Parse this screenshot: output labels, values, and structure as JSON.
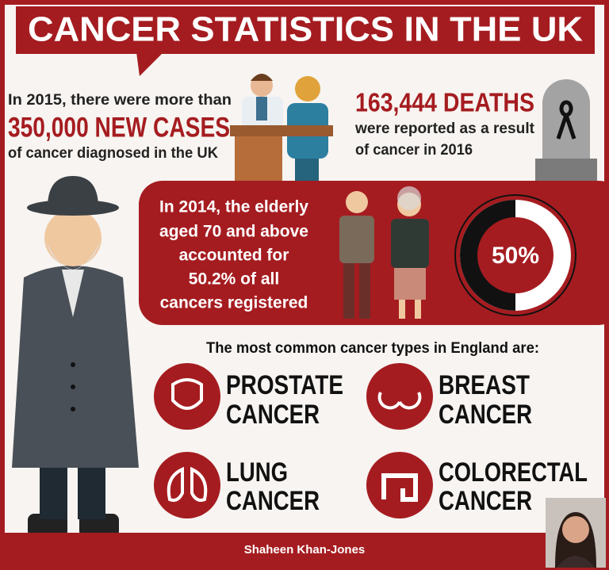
{
  "header": {
    "title": "CANCER STATISTICS IN THE UK"
  },
  "new_cases": {
    "intro": "In 2015, there were more than",
    "highlight": "350,000 NEW CASES",
    "outro": "of cancer diagnosed in the UK"
  },
  "deaths": {
    "highlight": "163,444 DEATHS",
    "lines": [
      "were reported as a result",
      "of cancer in 2016"
    ]
  },
  "elderly": {
    "lines": [
      "In 2014, the elderly",
      "aged 70 and above",
      "accounted for",
      "50.2% of all",
      "cancers registered"
    ],
    "donut_label": "50%"
  },
  "common": {
    "heading": "The most common cancer types in England are:",
    "types": [
      {
        "lines": [
          "PROSTATE",
          "CANCER"
        ]
      },
      {
        "lines": [
          "BREAST",
          "CANCER"
        ]
      },
      {
        "lines": [
          "LUNG",
          "CANCER"
        ]
      },
      {
        "lines": [
          "COLORECTAL",
          "CANCER"
        ]
      }
    ]
  },
  "footer": {
    "author": "Shaheen Khan-Jones"
  }
}
